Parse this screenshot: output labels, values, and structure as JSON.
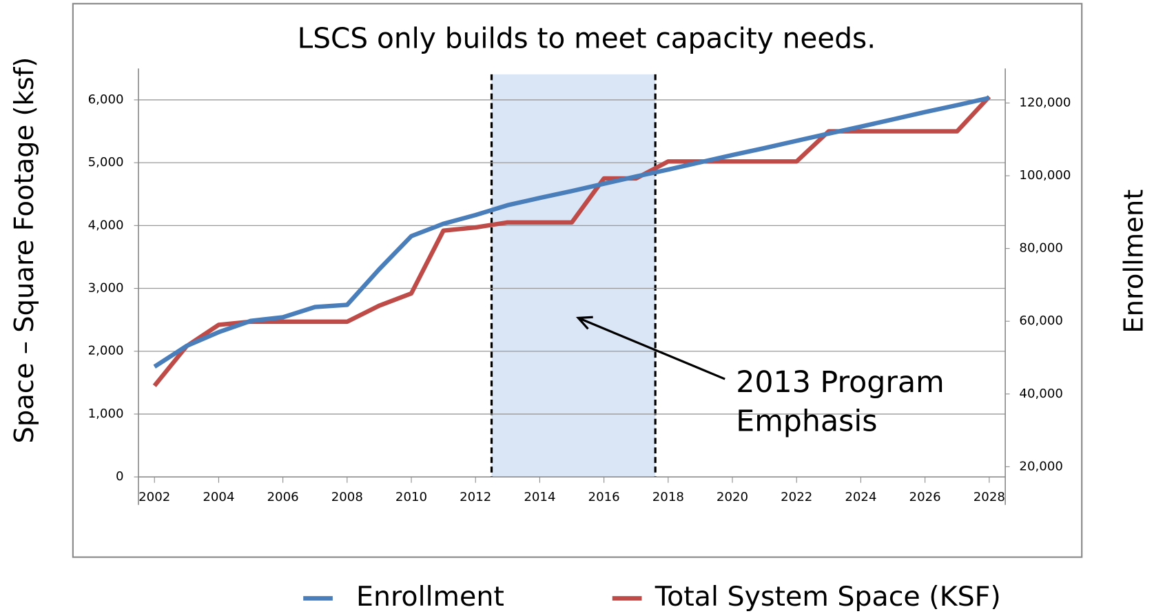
{
  "chart_data": {
    "type": "line",
    "title": "LSCS only builds to meet capacity needs.",
    "y_label": "Space – Square Footage (ksf)",
    "y2_label": "Enrollment",
    "x": [
      2002,
      2003,
      2004,
      2005,
      2006,
      2007,
      2008,
      2009,
      2010,
      2011,
      2012,
      2013,
      2014,
      2015,
      2016,
      2017,
      2018,
      2019,
      2020,
      2021,
      2022,
      2023,
      2024,
      2025,
      2026,
      2027,
      2028
    ],
    "series": [
      {
        "name": "Enrollment",
        "color": "#4a7ebb",
        "axis": "y2",
        "values": [
          47500,
          53200,
          57000,
          60100,
          61100,
          63900,
          64500,
          74300,
          83400,
          86800,
          89200,
          91900,
          93900,
          95800,
          97800,
          99800,
          101700,
          103700,
          105700,
          107600,
          109600,
          111600,
          113500,
          115500,
          117500,
          119400,
          121400
        ]
      },
      {
        "name": "Total System Space (KSF)",
        "color": "#be4b48",
        "axis": "y",
        "values": [
          1450,
          2080,
          2420,
          2470,
          2470,
          2470,
          2470,
          2725,
          2920,
          3920,
          3970,
          4050,
          4050,
          4050,
          4750,
          4750,
          5020,
          5020,
          5020,
          5020,
          5020,
          5500,
          5500,
          5500,
          5500,
          5500,
          6050
        ]
      }
    ],
    "xlim": [
      2001.5,
      2028.5
    ],
    "xticks": [
      2002,
      2004,
      2006,
      2008,
      2010,
      2012,
      2014,
      2016,
      2018,
      2020,
      2022,
      2024,
      2026,
      2028
    ],
    "ylim": [
      0,
      6500
    ],
    "yticks": [
      0,
      {
        "value": 1000,
        "label": "1,000"
      },
      {
        "value": 2000,
        "label": "2,000"
      },
      {
        "value": 3000,
        "label": "3,000"
      },
      {
        "value": 4000,
        "label": "4,000"
      },
      {
        "value": 5000,
        "label": "5,000"
      },
      {
        "value": 6000,
        "label": "6,000"
      }
    ],
    "y2lim": [
      17200,
      129500
    ],
    "y2ticks": [
      {
        "value": 20000,
        "label": "20,000"
      },
      {
        "value": 40000,
        "label": "40,000"
      },
      {
        "value": 60000,
        "label": "60,000"
      },
      {
        "value": 80000,
        "label": "80,000"
      },
      {
        "value": 100000,
        "label": "100,000"
      },
      {
        "value": 120000,
        "label": "120,000"
      }
    ],
    "grid": true,
    "highlight": {
      "x": [
        2012.5,
        2017.6
      ],
      "color": "#dae5f5"
    },
    "annotation": {
      "text": [
        "2013 Program",
        "Emphasis"
      ],
      "x": 2015.2,
      "y": 2530
    }
  }
}
